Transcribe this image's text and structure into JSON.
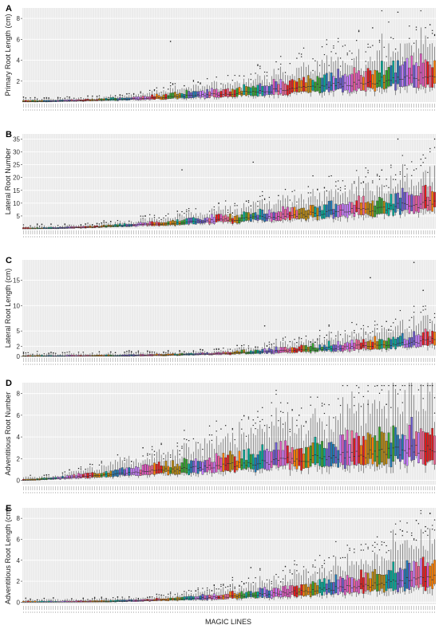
{
  "chart_data": [
    {
      "panel": "A",
      "type": "boxplot",
      "ylabel": "Primary Root Length (cm)",
      "yticks": [
        2,
        4,
        6,
        8
      ],
      "ylim": [
        0,
        9
      ],
      "n_lines": 180,
      "median_start": 0.05,
      "median_end": 2.6,
      "median_shape": 1.7,
      "q3_extra": 0.55,
      "whisker_extra": 1.2,
      "outlier_peaks": [
        {
          "i": 163,
          "v": 8.6
        },
        {
          "i": 152,
          "v": 7.1
        },
        {
          "i": 177,
          "v": 7.4
        },
        {
          "i": 64,
          "v": 5.8
        }
      ]
    },
    {
      "panel": "B",
      "type": "boxplot",
      "ylabel": "Lateral Root Number",
      "yticks": [
        5,
        10,
        15,
        20,
        25,
        30,
        35
      ],
      "ylim": [
        0,
        37
      ],
      "n_lines": 180,
      "median_start": 0.0,
      "median_end": 10,
      "median_shape": 1.5,
      "q3_extra": 0.45,
      "whisker_extra": 1.3,
      "outlier_peaks": [
        {
          "i": 163,
          "v": 35
        },
        {
          "i": 179,
          "v": 35
        },
        {
          "i": 100,
          "v": 26
        },
        {
          "i": 69,
          "v": 23
        }
      ]
    },
    {
      "panel": "C",
      "type": "boxplot",
      "ylabel": "Lateral Root Length (cm)",
      "yticks": [
        0,
        2,
        5,
        10,
        15
      ],
      "ylim": [
        0,
        19
      ],
      "n_lines": 180,
      "median_start": 0.0,
      "median_end": 3.2,
      "median_shape": 2.4,
      "q3_extra": 0.5,
      "whisker_extra": 1.4,
      "outlier_peaks": [
        {
          "i": 170,
          "v": 18.5
        },
        {
          "i": 151,
          "v": 15.5
        },
        {
          "i": 174,
          "v": 13
        },
        {
          "i": 105,
          "v": 6
        }
      ]
    },
    {
      "panel": "D",
      "type": "boxplot",
      "ylabel": "Adventitious Root Number",
      "yticks": [
        0,
        2,
        4,
        6,
        8
      ],
      "ylim": [
        -0.4,
        9
      ],
      "n_lines": 180,
      "median_start": 0.0,
      "median_end": 3.0,
      "median_shape": 1.1,
      "q3_extra": 0.6,
      "whisker_extra": 1.6,
      "outlier_peaks": [
        {
          "i": 150,
          "v": 7
        },
        {
          "i": 158,
          "v": 7
        },
        {
          "i": 120,
          "v": 6
        },
        {
          "i": 52,
          "v": 3
        }
      ]
    },
    {
      "panel": "E",
      "type": "boxplot",
      "ylabel": "Adventitious Root Length (cm)",
      "yticks": [
        0,
        2,
        4,
        6,
        8
      ],
      "ylim": [
        -0.2,
        9
      ],
      "n_lines": 180,
      "median_start": 0.0,
      "median_end": 2.4,
      "median_shape": 2.2,
      "q3_extra": 0.6,
      "whisker_extra": 1.5,
      "outlier_peaks": [
        {
          "i": 171,
          "v": 7.8
        },
        {
          "i": 165,
          "v": 6.8
        },
        {
          "i": 175,
          "v": 7.2
        },
        {
          "i": 99,
          "v": 3.3
        }
      ]
    }
  ],
  "xlabel": "MAGIC LINES",
  "palette": [
    "#e41a1c",
    "#ff7f00",
    "#b8860b",
    "#33a02c",
    "#00a896",
    "#1f78b4",
    "#6a5acd",
    "#c77dff",
    "#e056c0",
    "#f06292"
  ],
  "panel_bg": "#ebebeb",
  "grid_color": "#ffffff"
}
